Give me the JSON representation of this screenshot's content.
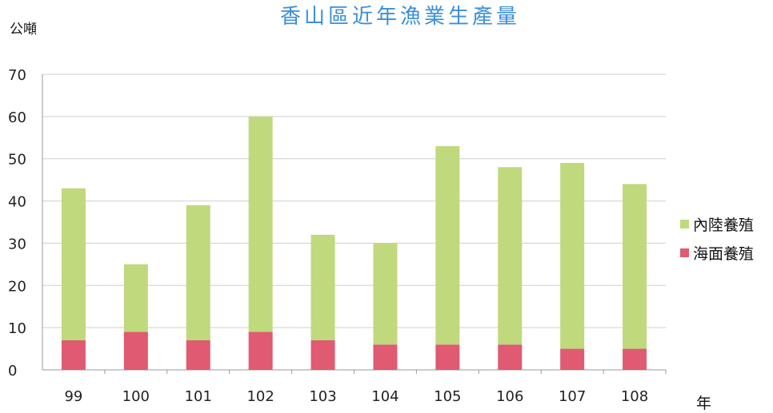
{
  "chart_data": {
    "type": "bar",
    "stacked": true,
    "title": "香山區近年漁業生產量",
    "ylabel": "公噸",
    "xlabel": "年",
    "categories": [
      "99",
      "100",
      "101",
      "102",
      "103",
      "104",
      "105",
      "106",
      "107",
      "108"
    ],
    "ylim": [
      0,
      70
    ],
    "yticks": [
      0,
      10,
      20,
      30,
      40,
      50,
      60,
      70
    ],
    "grid": true,
    "legend_position": "right",
    "series": [
      {
        "name": "海面養殖",
        "color": "#e05a72",
        "values": [
          7,
          9,
          7,
          9,
          7,
          6,
          6,
          6,
          5,
          5
        ]
      },
      {
        "name": "內陸養殖",
        "color": "#bfd97c",
        "values": [
          36,
          16,
          32,
          51,
          25,
          24,
          47,
          42,
          44,
          39
        ]
      }
    ]
  },
  "legend": {
    "items": [
      {
        "label": "內陸養殖",
        "color": "#bfd97c"
      },
      {
        "label": "海面養殖",
        "color": "#e05a72"
      }
    ]
  }
}
